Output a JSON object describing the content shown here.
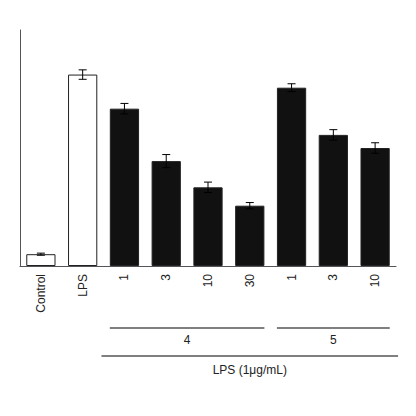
{
  "chart_data": {
    "type": "bar",
    "categories": [
      "Control",
      "LPS",
      "1",
      "3",
      "10",
      "30",
      "1",
      "3",
      "10"
    ],
    "values": [
      4.5,
      73.0,
      60.0,
      40.0,
      30.0,
      23.0,
      68.0,
      50.0,
      45.0
    ],
    "errors": [
      0.4,
      1.8,
      2.0,
      2.5,
      2.0,
      1.2,
      1.5,
      2.0,
      2.0
    ],
    "groups": [
      null,
      null,
      "4",
      "4",
      "4",
      "4",
      "5",
      "5",
      "5"
    ],
    "x_label": "LPS (1μg/mL)",
    "colors": [
      "#ffffff",
      "#ffffff",
      "#111111",
      "#111111",
      "#111111",
      "#111111",
      "#111111",
      "#111111",
      "#111111"
    ],
    "ylim": [
      0,
      90
    ],
    "tick_labels": "x",
    "grid": false
  }
}
